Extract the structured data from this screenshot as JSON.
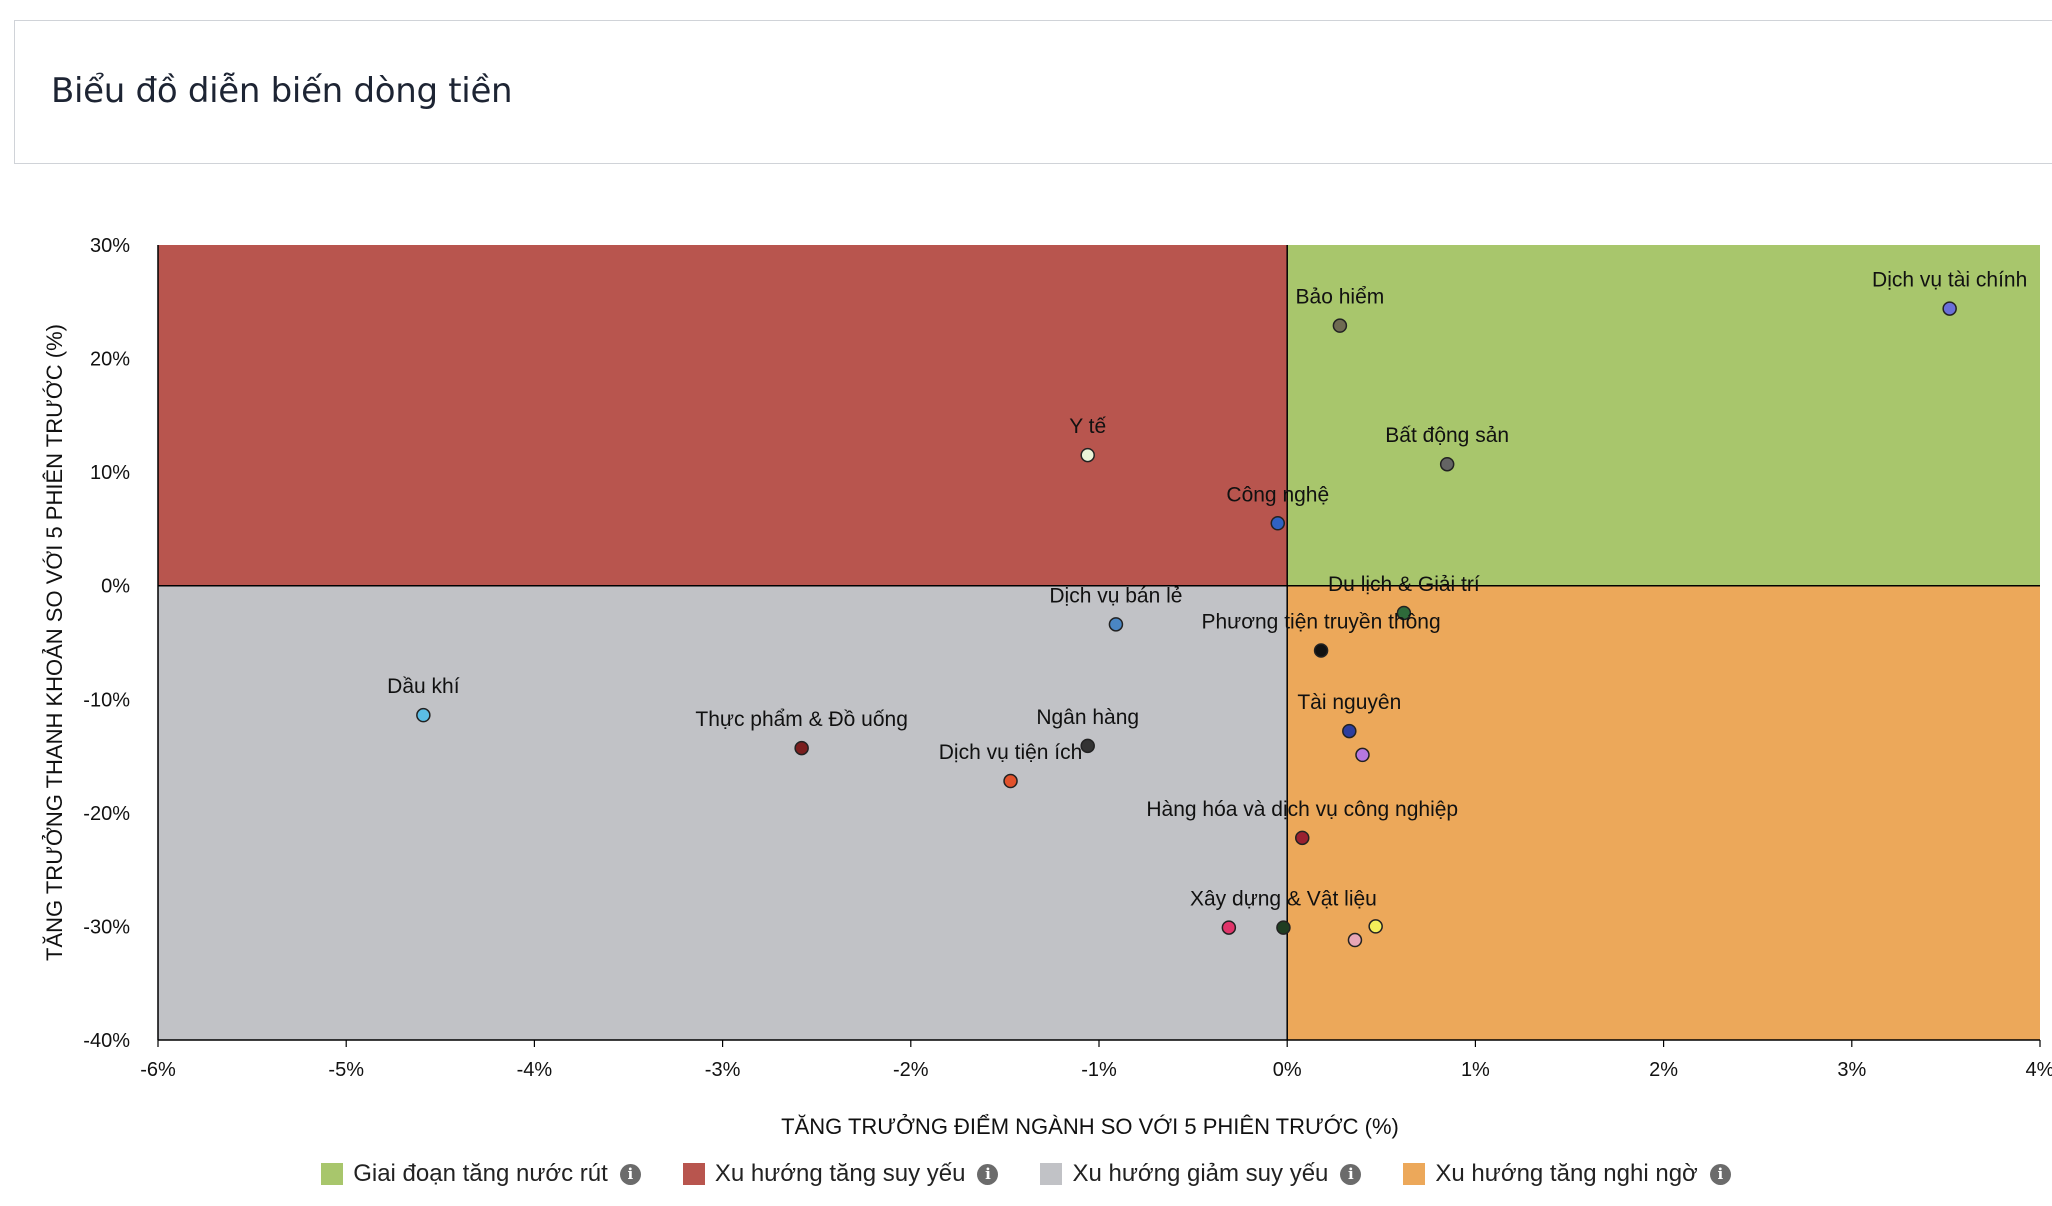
{
  "page": {
    "title": "Biểu đồ diễn biến dòng tiền"
  },
  "legend": [
    {
      "label": "Giai đoạn tăng nước rút",
      "color": "#a8c66c",
      "info_icon": "info-icon"
    },
    {
      "label": "Xu hướng tăng suy yếu",
      "color": "#b8554e",
      "info_icon": "info-icon"
    },
    {
      "label": "Xu hướng giảm suy yếu",
      "color": "#c1c2c6",
      "info_icon": "info-icon"
    },
    {
      "label": "Xu hướng tăng nghi ngờ",
      "color": "#eca85a",
      "info_icon": "info-icon"
    }
  ],
  "chart_data": {
    "type": "scatter",
    "xlabel": "TĂNG TRƯỞNG ĐIỂM NGÀNH SO VỚI 5 PHIÊN TRƯỚC (%)",
    "ylabel": "TĂNG TRƯỞNG THANH KHOẢN SO VỚI 5 PHIÊN TRƯỚC (%)",
    "xlim": [
      -6,
      4
    ],
    "ylim": [
      -40,
      30
    ],
    "x_ticks": [
      {
        "value": -6,
        "label": "-6%"
      },
      {
        "value": -5,
        "label": "-5%"
      },
      {
        "value": -4,
        "label": "-4%"
      },
      {
        "value": -3,
        "label": "-3%"
      },
      {
        "value": -2,
        "label": "-2%"
      },
      {
        "value": -1,
        "label": "-1%"
      },
      {
        "value": 0,
        "label": "0%"
      },
      {
        "value": 1,
        "label": "1%"
      },
      {
        "value": 2,
        "label": "2%"
      },
      {
        "value": 3,
        "label": "3%"
      },
      {
        "value": 4,
        "label": "4%"
      }
    ],
    "y_ticks": [
      {
        "value": 30,
        "label": "30%"
      },
      {
        "value": 20,
        "label": "20%"
      },
      {
        "value": 10,
        "label": "10%"
      },
      {
        "value": 0,
        "label": "0%"
      },
      {
        "value": -10,
        "label": "-10%"
      },
      {
        "value": -20,
        "label": "-20%"
      },
      {
        "value": -30,
        "label": "-30%"
      },
      {
        "value": -40,
        "label": "-40%"
      }
    ],
    "quadrants": {
      "top_right": "#a8c66c",
      "top_left": "#b8554e",
      "bottom_left": "#c1c2c6",
      "bottom_right": "#eca85a"
    },
    "points": [
      {
        "label": "Dịch vụ tài chính",
        "x": 3.52,
        "y": 24.4,
        "color": "#6a6fd8"
      },
      {
        "label": "Bảo hiểm",
        "x": 0.28,
        "y": 22.9,
        "color": "#6f6a52"
      },
      {
        "label": "Bất động sản",
        "x": 0.85,
        "y": 10.7,
        "color": "#646464"
      },
      {
        "label": "Y tế",
        "x": -1.06,
        "y": 11.5,
        "color": "#e9f3d8"
      },
      {
        "label": "Công nghệ",
        "x": -0.05,
        "y": 5.5,
        "color": "#2f62c2"
      },
      {
        "label": "Du lịch & Giải trí",
        "x": 0.62,
        "y": -2.4,
        "color": "#2e6a3a"
      },
      {
        "label": "Dịch vụ bán lẻ",
        "x": -0.91,
        "y": -3.4,
        "color": "#4a86c4"
      },
      {
        "label": "Phương tiện truyền thông",
        "x": 0.18,
        "y": -5.7,
        "color": "#111111"
      },
      {
        "label": "Dầu khí",
        "x": -4.59,
        "y": -11.4,
        "color": "#5bbde5"
      },
      {
        "label": "Thực phẩm & Đồ uống",
        "x": -2.58,
        "y": -14.3,
        "color": "#7a1e1e"
      },
      {
        "label": "Ngân hàng",
        "x": -1.06,
        "y": -14.1,
        "color": "#333333"
      },
      {
        "label": "Dịch vụ tiện ích",
        "x": -1.47,
        "y": -17.2,
        "color": "#e2522c"
      },
      {
        "label": "Tài nguyên",
        "x": 0.33,
        "y": -12.8,
        "color": "#2d3e9e"
      },
      {
        "label": "",
        "x": 0.4,
        "y": -14.9,
        "color": "#b678e0"
      },
      {
        "label": "Hàng hóa và dịch vụ công nghiệp",
        "x": 0.08,
        "y": -22.2,
        "color": "#9a2030"
      },
      {
        "label": "Xây dựng & Vật liệu",
        "x": -0.02,
        "y": -30.1,
        "color": "#1f3d22"
      },
      {
        "label": "",
        "x": -0.31,
        "y": -30.1,
        "color": "#e0356a"
      },
      {
        "label": "",
        "x": 0.47,
        "y": -30.0,
        "color": "#f4ef5a"
      },
      {
        "label": "",
        "x": 0.36,
        "y": -31.2,
        "color": "#e8a6b6"
      }
    ]
  }
}
